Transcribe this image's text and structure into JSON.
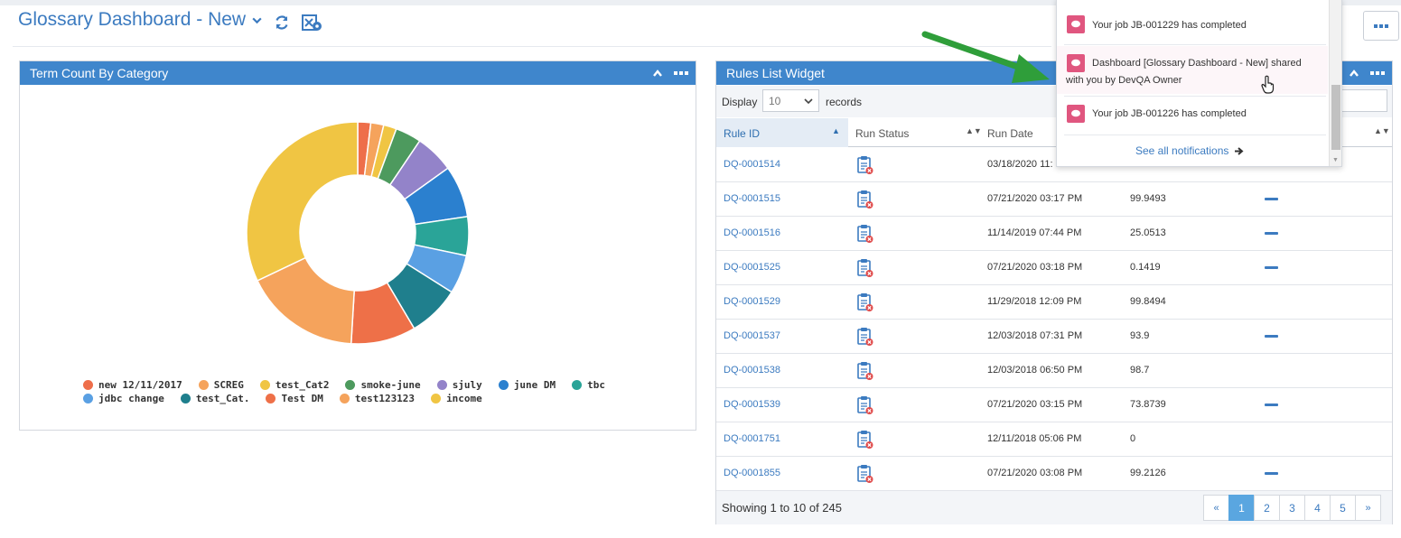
{
  "page": {
    "title": "Glossary Dashboard - New",
    "colors": {
      "brand": "#3c7bc0",
      "panel_header": "#3f86cc",
      "notification": "#e0567f"
    }
  },
  "term_widget": {
    "title": "Term Count By Category",
    "chart_data": {
      "type": "pie",
      "donut": true,
      "categories": [
        "new 12/11/2017",
        "SCREG",
        "test_Cat2",
        "smoke-june",
        "sjuly",
        "june DM",
        "tbc",
        "jdbc change",
        "test_Cat.",
        "Test DM",
        "test123123",
        "income"
      ],
      "values": [
        1,
        1,
        1,
        2,
        3,
        4,
        3,
        3,
        4,
        5,
        9,
        17
      ],
      "colors": [
        "#ee6e4a",
        "#f5a35c",
        "#f0c543",
        "#4d9a5e",
        "#9383c9",
        "#2b80cf",
        "#2aa498",
        "#5aa0e3",
        "#1f7f8d",
        "#ee7048",
        "#f5a35c",
        "#f0c543"
      ],
      "legend_position": "bottom"
    }
  },
  "rules_widget": {
    "title": "Rules List Widget",
    "display_label": "Display",
    "page_size": "10",
    "records_label": "records",
    "columns": [
      "Rule ID",
      "Run Status",
      "Run Date"
    ],
    "rows": [
      {
        "id": "DQ-0001514",
        "date": "03/18/2020 11:",
        "score": "",
        "trend": false
      },
      {
        "id": "DQ-0001515",
        "date": "07/21/2020 03:17 PM",
        "score": "99.9493",
        "trend": true
      },
      {
        "id": "DQ-0001516",
        "date": "11/14/2019 07:44 PM",
        "score": "25.0513",
        "trend": true
      },
      {
        "id": "DQ-0001525",
        "date": "07/21/2020 03:18 PM",
        "score": "0.1419",
        "trend": true
      },
      {
        "id": "DQ-0001529",
        "date": "11/29/2018 12:09 PM",
        "score": "99.8494",
        "trend": false
      },
      {
        "id": "DQ-0001537",
        "date": "12/03/2018 07:31 PM",
        "score": "93.9",
        "trend": true
      },
      {
        "id": "DQ-0001538",
        "date": "12/03/2018 06:50 PM",
        "score": "98.7",
        "trend": false
      },
      {
        "id": "DQ-0001539",
        "date": "07/21/2020 03:15 PM",
        "score": "73.8739",
        "trend": true
      },
      {
        "id": "DQ-0001751",
        "date": "12/11/2018 05:06 PM",
        "score": "0",
        "trend": false
      },
      {
        "id": "DQ-0001855",
        "date": "07/21/2020 03:08 PM",
        "score": "99.2126",
        "trend": true
      }
    ],
    "footer_text": "Showing 1 to 10 of 245",
    "pager": {
      "first": "«",
      "pages": [
        "1",
        "2",
        "3",
        "4",
        "5"
      ],
      "next": "»",
      "current": "1"
    }
  },
  "notifications": {
    "items": [
      {
        "text": "Your job JB-001229 has completed"
      },
      {
        "line1": "Dashboard [Glossary Dashboard - New] shared",
        "line2": "with you by DevQA Owner"
      },
      {
        "text": "Your job JB-001226 has completed"
      }
    ],
    "see_all": "See all notifications"
  },
  "icons": {
    "title_caret": "chevron-down-icon",
    "refresh": "refresh-icon",
    "export": "export-settings-icon",
    "status": "clipboard-error-icon",
    "notification": "chat-bubble-icon",
    "collapse": "chevron-up-icon",
    "more": "more-dots-icon"
  }
}
